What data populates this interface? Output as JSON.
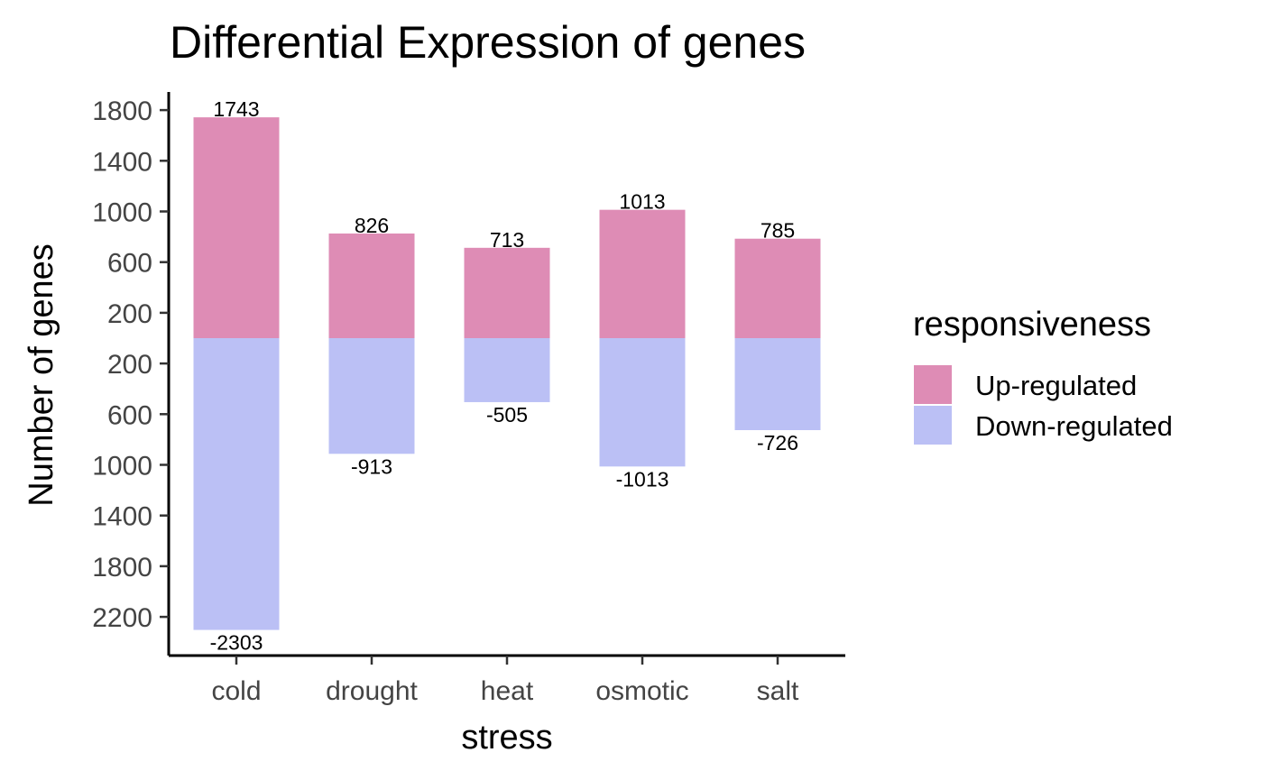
{
  "chart_data": {
    "type": "bar",
    "stacked": "diverging",
    "title": "Differential Expression of genes",
    "xlabel": "stress",
    "ylabel": "Number of genes",
    "categories": [
      "cold",
      "drought",
      "heat",
      "osmotic",
      "salt"
    ],
    "series": [
      {
        "name": "Up-regulated",
        "values": [
          1743,
          826,
          713,
          1013,
          785
        ],
        "color": "#DE8CB5"
      },
      {
        "name": "Down-regulated",
        "values": [
          -2303,
          -913,
          -505,
          -1013,
          -726
        ],
        "color": "#BBC0F5"
      }
    ],
    "y_ticks": [
      {
        "value": 1800,
        "label": "1800"
      },
      {
        "value": 1400,
        "label": "1400"
      },
      {
        "value": 1000,
        "label": "1000"
      },
      {
        "value": 600,
        "label": "600"
      },
      {
        "value": 200,
        "label": "200"
      },
      {
        "value": -200,
        "label": "200"
      },
      {
        "value": -600,
        "label": "600"
      },
      {
        "value": -1000,
        "label": "1000"
      },
      {
        "value": -1400,
        "label": "1400"
      },
      {
        "value": -1800,
        "label": "1800"
      },
      {
        "value": -2200,
        "label": "2200"
      }
    ],
    "ylim": [
      -2500,
      1900
    ],
    "legend": {
      "title": "responsiveness",
      "position": "right"
    },
    "grid": false
  }
}
